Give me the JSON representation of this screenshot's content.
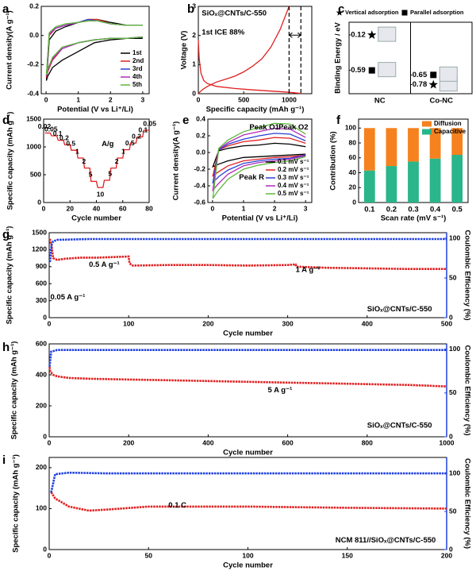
{
  "chart_data": [
    {
      "panel": "a",
      "type": "line",
      "xlabel": "Potential (V vs Li⁺/Li)",
      "ylabel": "Current density(A g⁻¹)",
      "xlim": [
        -0.15,
        3.2
      ],
      "ylim": [
        -0.4,
        0.2
      ],
      "xticks": [
        0,
        1,
        2,
        3
      ],
      "yticks": [
        -0.4,
        -0.2,
        {
          "value": 0,
          "label": "0.0"
        },
        0.2
      ],
      "legend": "lower right",
      "x": [
        3.0,
        2.5,
        2.0,
        1.5,
        1.0,
        0.5,
        0.2,
        0.05,
        0.01,
        0.1,
        0.3,
        0.6,
        1.0,
        1.3,
        1.6,
        2.0,
        2.5,
        3.0
      ],
      "series": [
        {
          "name": "1st",
          "color": "#000000",
          "values": [
            -0.02,
            -0.02,
            -0.03,
            -0.05,
            -0.11,
            -0.17,
            -0.22,
            -0.28,
            -0.31,
            -0.03,
            0.03,
            0.06,
            0.09,
            0.11,
            0.11,
            0.09,
            0.07,
            0.07
          ]
        },
        {
          "name": "2nd",
          "color": "#e02020",
          "values": [
            -0.01,
            -0.02,
            -0.02,
            -0.03,
            -0.05,
            -0.09,
            -0.17,
            -0.25,
            -0.29,
            0.0,
            0.05,
            0.07,
            0.09,
            0.11,
            0.11,
            0.08,
            0.07,
            0.07
          ]
        },
        {
          "name": "3rd",
          "color": "#2a3fd6",
          "values": [
            -0.01,
            -0.02,
            -0.02,
            -0.03,
            -0.05,
            -0.09,
            -0.16,
            -0.24,
            -0.28,
            0.01,
            0.05,
            0.07,
            0.09,
            0.11,
            0.1,
            0.08,
            0.07,
            0.07
          ]
        },
        {
          "name": "4th",
          "color": "#b02ab8",
          "values": [
            -0.01,
            -0.02,
            -0.02,
            -0.03,
            -0.05,
            -0.09,
            -0.16,
            -0.24,
            -0.28,
            0.01,
            0.05,
            0.07,
            0.09,
            0.1,
            0.1,
            0.08,
            0.07,
            0.07
          ]
        },
        {
          "name": "5th",
          "color": "#5cb83a",
          "values": [
            -0.01,
            -0.02,
            -0.02,
            -0.03,
            -0.05,
            -0.08,
            -0.15,
            -0.23,
            -0.27,
            0.02,
            0.06,
            0.08,
            0.09,
            0.1,
            0.1,
            0.08,
            0.07,
            0.07
          ]
        }
      ]
    },
    {
      "panel": "b",
      "type": "line",
      "xlabel": "Specific capacity (mAh g⁻¹)",
      "ylabel": "Voltage (V)",
      "xlim": [
        0,
        1250
      ],
      "ylim": [
        0,
        3
      ],
      "xticks": [
        0,
        500,
        1000
      ],
      "yticks": [
        0,
        1,
        2,
        3
      ],
      "reference_lines": [
        1000,
        1130
      ],
      "annotations": [
        {
          "text": "SiOₓ@CNTs/C-550",
          "color": "#000000"
        },
        {
          "text": "1st ICE 88%",
          "color": "#e02020"
        }
      ],
      "series": [
        {
          "color": "#e02020",
          "x": [
            0,
            10,
            30,
            60,
            100,
            200,
            400,
            600,
            800,
            1000,
            1100,
            1130
          ],
          "values": [
            1.85,
            1.2,
            0.7,
            0.45,
            0.35,
            0.25,
            0.18,
            0.13,
            0.09,
            0.05,
            0.02,
            0.01
          ]
        },
        {
          "color": "#e02020",
          "x": [
            0,
            50,
            100,
            200,
            300,
            400,
            500,
            600,
            700,
            800,
            900,
            1000
          ],
          "values": [
            0.01,
            0.15,
            0.25,
            0.4,
            0.5,
            0.6,
            0.75,
            0.95,
            1.2,
            1.6,
            2.2,
            3.0
          ]
        }
      ]
    },
    {
      "panel": "c",
      "type": "scatter",
      "ylabel": "Binding Energy / eV",
      "categories": [
        "NC",
        "Co-NC"
      ],
      "category_colors": [
        "#000000",
        "#e02020"
      ],
      "ylim": [
        -0.9,
        0.05
      ],
      "legend": "top",
      "series": [
        {
          "name": "Vertical adsorption",
          "marker": "star",
          "values": [
            -0.12,
            -0.78
          ]
        },
        {
          "name": "Parallel adsorption",
          "marker": "square",
          "values": [
            -0.59,
            -0.65
          ]
        }
      ]
    },
    {
      "panel": "d",
      "type": "line",
      "xlabel": "Cycle number",
      "ylabel": "Specific capacity (mAh g⁻¹)",
      "xlim": [
        0,
        80
      ],
      "ylim": [
        0,
        1500
      ],
      "xticks": [
        0,
        20,
        40,
        60,
        80
      ],
      "yticks": [
        0,
        500,
        1000,
        1500
      ],
      "annotations": [
        {
          "text": "A/g"
        }
      ],
      "step_labels": [
        "0.02",
        "0.05",
        "0.1",
        "0.2",
        "0.5",
        "1",
        "2",
        "5",
        "10",
        "5",
        "2",
        "1",
        "0.5",
        "0.2",
        "0.1",
        "0.05"
      ],
      "x": [
        1,
        5,
        6,
        10,
        11,
        15,
        16,
        20,
        21,
        25,
        26,
        30,
        31,
        35,
        36,
        40,
        41,
        45,
        46,
        50,
        51,
        55,
        56,
        60,
        61,
        65,
        66,
        70,
        71,
        75,
        76,
        80
      ],
      "series": [
        {
          "color": "#e02020",
          "values": [
            1250,
            1250,
            1200,
            1200,
            1120,
            1120,
            1040,
            1040,
            940,
            940,
            800,
            800,
            620,
            620,
            380,
            380,
            270,
            270,
            400,
            400,
            620,
            620,
            800,
            800,
            950,
            950,
            1070,
            1070,
            1180,
            1180,
            1300,
            1300
          ]
        }
      ]
    },
    {
      "panel": "e",
      "type": "line",
      "xlabel": "Potential (V vs Li⁺/Li)",
      "ylabel": "Current density(A g⁻¹)",
      "xlim": [
        -0.15,
        3.2
      ],
      "ylim": [
        -0.6,
        0.4
      ],
      "xticks": [
        0,
        1,
        2,
        3
      ],
      "yticks": [
        -0.6,
        -0.4,
        -0.2,
        {
          "value": 0,
          "label": "0.0"
        },
        0.2,
        0.4
      ],
      "legend": "lower right",
      "annotations": [
        {
          "text": "Peak O1"
        },
        {
          "text": "Peak O2"
        },
        {
          "text": "Peak R"
        }
      ],
      "x": [
        3.0,
        2.5,
        2.0,
        1.5,
        1.0,
        0.5,
        0.2,
        0.01,
        0.2,
        0.5,
        1.0,
        1.5,
        2.0,
        2.5,
        3.0
      ],
      "series": [
        {
          "name": "0.1 mV s⁻¹",
          "color": "#000000",
          "values": [
            -0.02,
            -0.03,
            -0.04,
            -0.05,
            -0.06,
            -0.1,
            -0.14,
            -0.17,
            0.02,
            0.05,
            0.08,
            0.09,
            0.11,
            0.1,
            0.07
          ]
        },
        {
          "name": "0.2 mV s⁻¹",
          "color": "#e02020",
          "values": [
            -0.03,
            -0.05,
            -0.06,
            -0.08,
            -0.1,
            -0.16,
            -0.23,
            -0.28,
            0.03,
            0.08,
            0.13,
            0.15,
            0.18,
            0.17,
            0.11
          ]
        },
        {
          "name": "0.3 mV s⁻¹",
          "color": "#2a3fd6",
          "values": [
            -0.03,
            -0.07,
            -0.08,
            -0.1,
            -0.13,
            -0.21,
            -0.29,
            -0.36,
            0.03,
            0.1,
            0.16,
            0.2,
            0.23,
            0.22,
            0.14
          ]
        },
        {
          "name": "0.4 mV s⁻¹",
          "color": "#b02ab8",
          "values": [
            -0.04,
            -0.08,
            -0.1,
            -0.12,
            -0.16,
            -0.26,
            -0.37,
            -0.45,
            0.04,
            0.12,
            0.21,
            0.25,
            0.29,
            0.28,
            0.18
          ]
        },
        {
          "name": "0.5 mV s⁻¹",
          "color": "#5cb83a",
          "values": [
            -0.05,
            -0.1,
            -0.12,
            -0.15,
            -0.2,
            -0.32,
            -0.45,
            -0.55,
            0.05,
            0.15,
            0.25,
            0.3,
            0.35,
            0.34,
            0.22
          ]
        }
      ]
    },
    {
      "panel": "f",
      "type": "bar",
      "stacked": true,
      "xlabel": "Scan rate (mV s⁻¹)",
      "ylabel": "Contribution (%)",
      "categories": [
        "0.1",
        "0.2",
        "0.3",
        "0.4",
        "0.5"
      ],
      "ylim": [
        0,
        112
      ],
      "yticks": [
        0,
        20,
        40,
        60,
        80,
        100
      ],
      "legend": "upper right",
      "series": [
        {
          "name": "Diffusion",
          "color": "#f5821f",
          "values": [
            57,
            51,
            45,
            41,
            36
          ]
        },
        {
          "name": "Capacitive",
          "color": "#2bb58a",
          "values": [
            43,
            49,
            55,
            59,
            64
          ]
        }
      ]
    },
    {
      "panel": "g",
      "type": "line",
      "xlabel": "Cycle number",
      "ylabel": "Specific capacity (mAh g⁻¹)",
      "y2label": "Coulombic Efficiency (%)",
      "y2color": "#2040e0",
      "xlim": [
        0,
        500
      ],
      "ylim": [
        0,
        1500
      ],
      "y2lim": [
        0,
        107
      ],
      "xticks": [
        0,
        100,
        200,
        300,
        400,
        500
      ],
      "yticks": [
        0,
        300,
        600,
        900,
        1200,
        1500
      ],
      "y2ticks": [
        0,
        50,
        100
      ],
      "annotations": [
        {
          "text": "0.05 A g⁻¹"
        },
        {
          "text": "0.5 A g⁻¹"
        },
        {
          "text": "1 A g⁻¹"
        },
        {
          "text": "SiOₓ@CNTs/C-550"
        }
      ],
      "series": [
        {
          "axis": "y",
          "color": "#e02020",
          "x": [
            1,
            2,
            3,
            5,
            10,
            20,
            40,
            60,
            80,
            100,
            101,
            105,
            150,
            200,
            250,
            300,
            310,
            311,
            350,
            400,
            450,
            500
          ],
          "values": [
            1390,
            1300,
            1280,
            1050,
            1020,
            1040,
            1060,
            1060,
            1070,
            1080,
            960,
            920,
            930,
            930,
            920,
            930,
            940,
            900,
            880,
            870,
            860,
            860
          ]
        },
        {
          "axis": "y2",
          "color": "#2040e0",
          "x": [
            1,
            3,
            5,
            10,
            50,
            100,
            200,
            300,
            400,
            500
          ],
          "values": [
            70,
            92,
            96,
            98,
            99,
            99,
            99,
            99,
            99,
            99
          ]
        }
      ]
    },
    {
      "panel": "h",
      "type": "line",
      "xlabel": "Cycle number",
      "ylabel": "Specific capacity (mAh g⁻¹)",
      "y2label": "Coulombic Efficiency (%)",
      "y2color": "#2040e0",
      "xlim": [
        0,
        1000
      ],
      "ylim": [
        0,
        600
      ],
      "y2lim": [
        0,
        106
      ],
      "xticks": [
        0,
        200,
        400,
        600,
        800,
        1000
      ],
      "yticks": [
        0,
        200,
        400,
        600
      ],
      "y2ticks": [
        0,
        50,
        100
      ],
      "annotations": [
        {
          "text": "5 A g⁻¹"
        },
        {
          "text": "SiOₓ@CNTs/C-550"
        }
      ],
      "series": [
        {
          "axis": "y",
          "color": "#e02020",
          "x": [
            1,
            3,
            10,
            20,
            50,
            100,
            200,
            300,
            400,
            500,
            600,
            700,
            800,
            900,
            950,
            1000
          ],
          "values": [
            450,
            420,
            400,
            390,
            380,
            375,
            370,
            365,
            360,
            355,
            350,
            345,
            340,
            335,
            330,
            325
          ]
        },
        {
          "axis": "y2",
          "color": "#2040e0",
          "x": [
            1,
            5,
            20,
            100,
            300,
            500,
            700,
            1000
          ],
          "values": [
            80,
            97,
            99,
            99,
            99,
            99,
            99,
            99
          ]
        }
      ]
    },
    {
      "panel": "i",
      "type": "line",
      "xlabel": "Cycle number",
      "ylabel": "Specific capacity (mAh g⁻¹)",
      "y2label": "Coulombic Efficiency (%)",
      "y2color": "#2040e0",
      "xlim": [
        0,
        200
      ],
      "ylim": [
        0,
        225
      ],
      "y2lim": [
        0,
        121
      ],
      "xticks": [
        0,
        50,
        100,
        150,
        200
      ],
      "yticks": [
        0,
        100,
        200
      ],
      "y2ticks": [
        0,
        50,
        100
      ],
      "annotations": [
        {
          "text": "0.1 C"
        },
        {
          "text": "NCM 811//SiOₓ@CNTs/C-550"
        }
      ],
      "series": [
        {
          "axis": "y",
          "color": "#e02020",
          "x": [
            1,
            3,
            10,
            20,
            30,
            50,
            100,
            150,
            200
          ],
          "values": [
            140,
            125,
            105,
            95,
            98,
            105,
            105,
            102,
            100
          ]
        },
        {
          "axis": "y2",
          "color": "#2040e0",
          "x": [
            1,
            3,
            10,
            30,
            60,
            100,
            150,
            200
          ],
          "values": [
            75,
            99,
            101,
            100,
            100,
            100,
            100,
            100
          ]
        }
      ]
    }
  ]
}
